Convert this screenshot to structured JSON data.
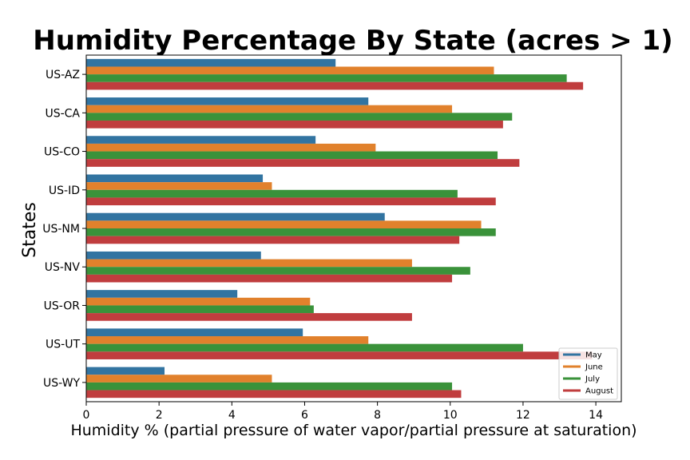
{
  "chart_data": {
    "type": "bar",
    "orientation": "horizontal",
    "title": "Humidity Percentage By State (acres > 1)",
    "xlabel": "Humidity % (partial pressure of water vapor/partial pressure at saturation)",
    "ylabel": "States",
    "xlim": [
      0,
      14.7
    ],
    "xticks": [
      "0",
      "2",
      "4",
      "6",
      "8",
      "10",
      "12",
      "14"
    ],
    "categories": [
      "US-AZ",
      "US-CA",
      "US-CO",
      "US-ID",
      "US-NM",
      "US-NV",
      "US-OR",
      "US-UT",
      "US-WY"
    ],
    "series": [
      {
        "name": "May",
        "color": "#3274a1",
        "values": [
          6.85,
          7.75,
          6.3,
          4.85,
          8.2,
          4.8,
          4.15,
          5.95,
          2.15
        ]
      },
      {
        "name": "June",
        "color": "#e1812c",
        "values": [
          11.2,
          10.05,
          7.95,
          5.1,
          10.85,
          8.95,
          6.15,
          7.75,
          5.1
        ]
      },
      {
        "name": "July",
        "color": "#3a923a",
        "values": [
          13.2,
          11.7,
          11.3,
          10.2,
          11.25,
          10.55,
          6.25,
          12.0,
          10.05
        ]
      },
      {
        "name": "August",
        "color": "#c03d3e",
        "values": [
          13.65,
          11.45,
          11.9,
          11.25,
          10.25,
          10.05,
          8.95,
          13.9,
          10.3
        ]
      }
    ],
    "legend": {
      "position": "bottom-right"
    },
    "grid": false
  }
}
